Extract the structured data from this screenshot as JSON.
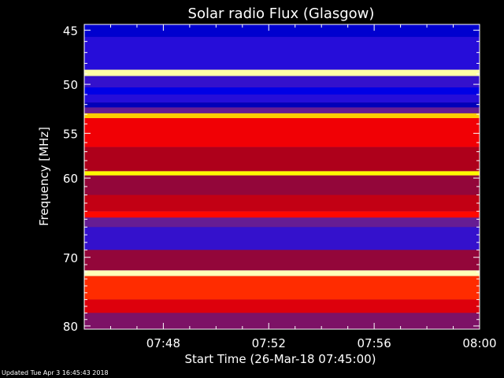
{
  "chart_data": {
    "type": "heatmap",
    "title": "Solar radio Flux (Glasgow)",
    "xlabel": "Start Time (26-Mar-18 07:45:00)",
    "ylabel": "Frequency [MHz]",
    "x_ticks": [
      "07:48",
      "07:52",
      "07:56",
      "08:00"
    ],
    "x_tick_minutes": [
      48,
      52,
      56,
      60
    ],
    "x_range_minutes": [
      45,
      60
    ],
    "y_ticks": [
      45,
      50,
      55,
      60,
      70,
      80
    ],
    "y_range_mhz": [
      44.5,
      80.5
    ],
    "y_scale": "log",
    "colormap": [
      "#000060",
      "#0000ff",
      "#6020a0",
      "#a00020",
      "#ff0000",
      "#ff8000",
      "#ffff00",
      "#ffffff"
    ],
    "bands": [
      {
        "from": 44.5,
        "to": 45.6,
        "level": 0.1
      },
      {
        "from": 45.6,
        "to": 48.6,
        "level": 0.2
      },
      {
        "from": 48.6,
        "to": 49.2,
        "level": 0.95
      },
      {
        "from": 49.2,
        "to": 50.3,
        "level": 0.22
      },
      {
        "from": 50.3,
        "to": 51.0,
        "level": 0.12
      },
      {
        "from": 51.0,
        "to": 51.8,
        "level": 0.2
      },
      {
        "from": 51.8,
        "to": 52.3,
        "level": 0.08
      },
      {
        "from": 52.3,
        "to": 52.9,
        "level": 0.3
      },
      {
        "from": 52.9,
        "to": 53.4,
        "level": 0.8
      },
      {
        "from": 53.4,
        "to": 56.5,
        "level": 0.55
      },
      {
        "from": 56.5,
        "to": 59.2,
        "level": 0.45
      },
      {
        "from": 59.2,
        "to": 59.7,
        "level": 0.85
      },
      {
        "from": 59.7,
        "to": 62.0,
        "level": 0.4
      },
      {
        "from": 62.0,
        "to": 64.0,
        "level": 0.48
      },
      {
        "from": 64.0,
        "to": 64.8,
        "level": 0.58
      },
      {
        "from": 64.8,
        "to": 66.0,
        "level": 0.3
      },
      {
        "from": 66.0,
        "to": 69.0,
        "level": 0.22
      },
      {
        "from": 69.0,
        "to": 71.8,
        "level": 0.4
      },
      {
        "from": 71.8,
        "to": 72.6,
        "level": 0.96
      },
      {
        "from": 72.6,
        "to": 76.0,
        "level": 0.62
      },
      {
        "from": 76.0,
        "to": 78.0,
        "level": 0.52
      },
      {
        "from": 78.0,
        "to": 80.5,
        "level": 0.35
      }
    ]
  },
  "footer": {
    "updated": "Updated Tue Apr  3 16:45:43 2018"
  }
}
